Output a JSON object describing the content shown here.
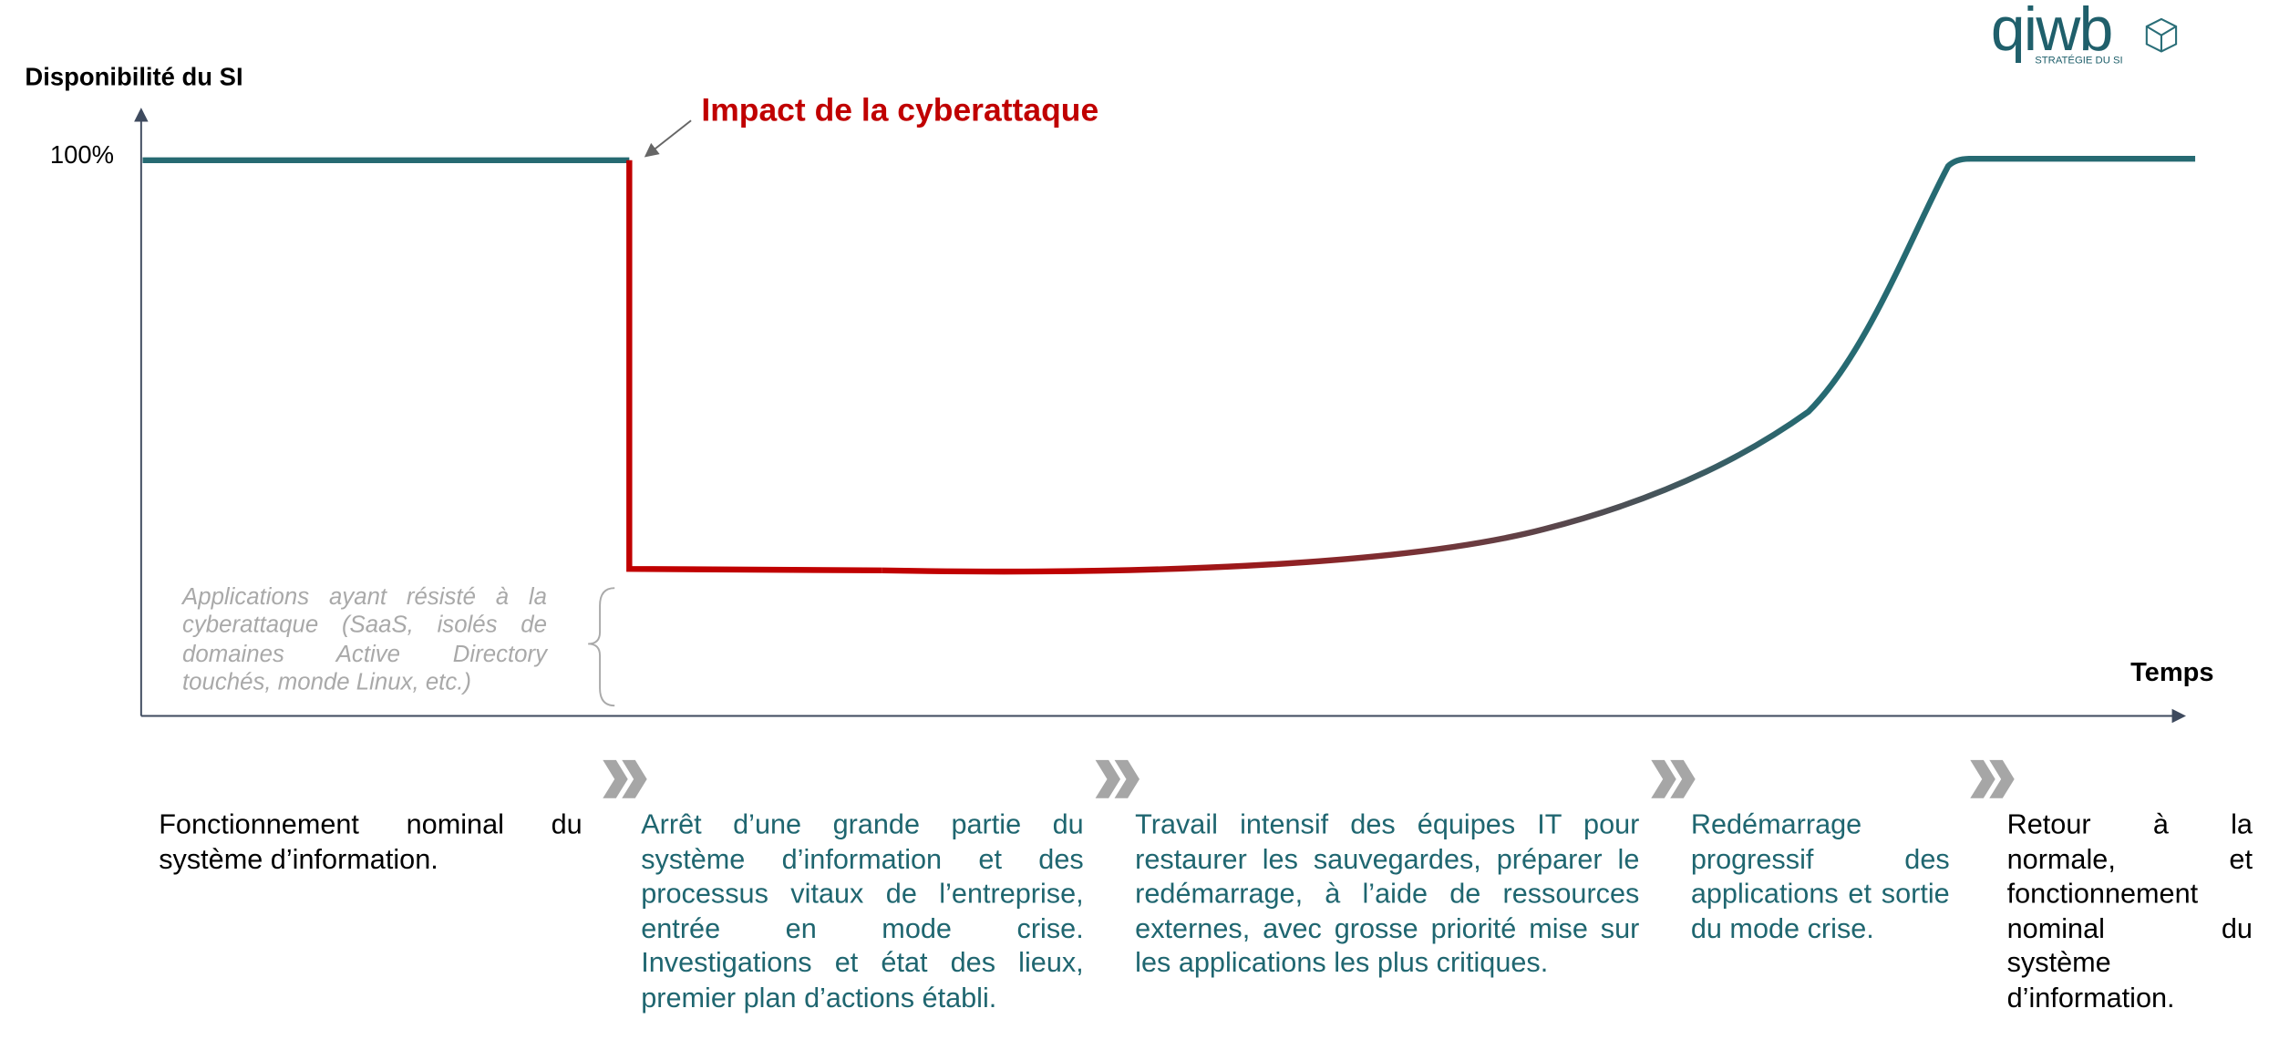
{
  "logo": {
    "name": "qiwb",
    "tagline": "STRATÉGIE DU SI"
  },
  "axis": {
    "y_label": "Disponibilité du SI",
    "x_label": "Temps",
    "y_max_label": "100%"
  },
  "annotation": "Impact de la cyberattaque",
  "note": "Applications ayant résisté à la cyberattaque (SaaS, isolés de domaines Active Directory touchés, monde Linux, etc.)",
  "phases": [
    "Fonctionnement nominal du système d’information.",
    "Arrêt d’une grande partie du système d’information et des processus vitaux de l’entreprise, entrée en mode crise. Investigations et état des lieux, premier plan d’actions établi.",
    "Travail intensif des équipes IT pour restaurer les sauvegardes, préparer le redémarrage, à l’aide de ressources externes, avec grosse priorité mise sur les applications les plus critiques.",
    "Redémarrage progressif des applications et sortie du mode crise.",
    "Retour à la normale, et fonctionnement nominal du système d’information."
  ]
}
